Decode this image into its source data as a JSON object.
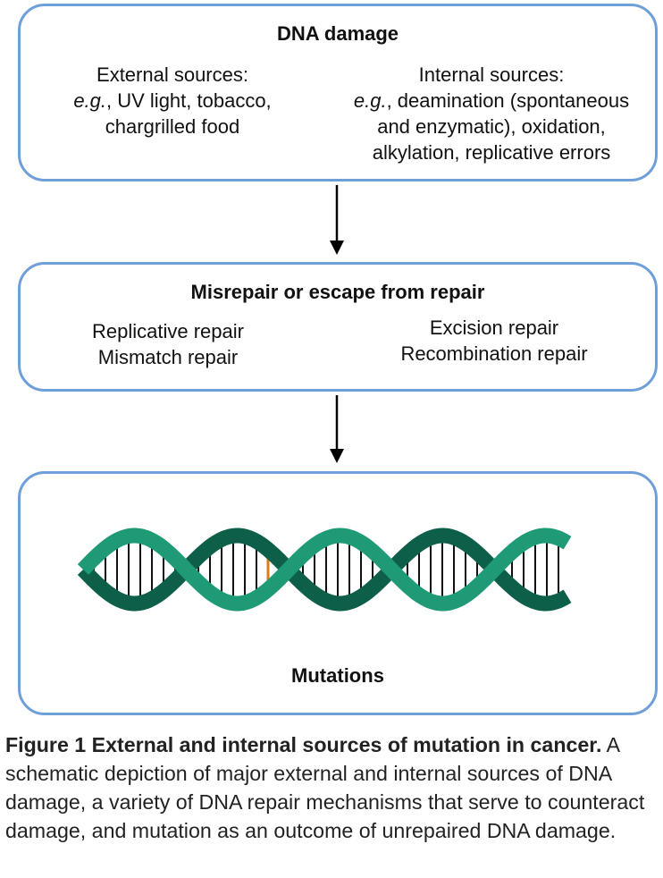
{
  "damage": {
    "title": "DNA damage",
    "external": {
      "heading": "External sources:",
      "eg": "e.g.",
      "line1_rest": ", UV light, tobacco,",
      "line2": "chargrilled food"
    },
    "internal": {
      "heading": "Internal sources:",
      "eg": "e.g.",
      "line1_rest": ", deamination (spontaneous",
      "line2": "and enzymatic), oxidation,",
      "line3": "alkylation, replicative errors"
    }
  },
  "repair": {
    "title": "Misrepair or escape from repair",
    "left": [
      "Replicative repair",
      "Mismatch repair"
    ],
    "right": [
      "Excision repair",
      "Recombination repair"
    ]
  },
  "mutations": {
    "title": "Mutations"
  },
  "colors": {
    "box_border": "#6f9fd8",
    "strand_light": "#1f9a77",
    "strand_dark": "#0e5f4a",
    "rung": "#111111",
    "mutation_rung": "#e07b1a"
  },
  "caption": {
    "label": "Figure 1 External and internal sources of mutation in cancer.",
    "text": " A schematic depiction of major external and internal sources of DNA damage, a variety of DNA repair mechanisms that serve to counteract damage, and mutation as an outcome of unrepaired DNA damage."
  }
}
